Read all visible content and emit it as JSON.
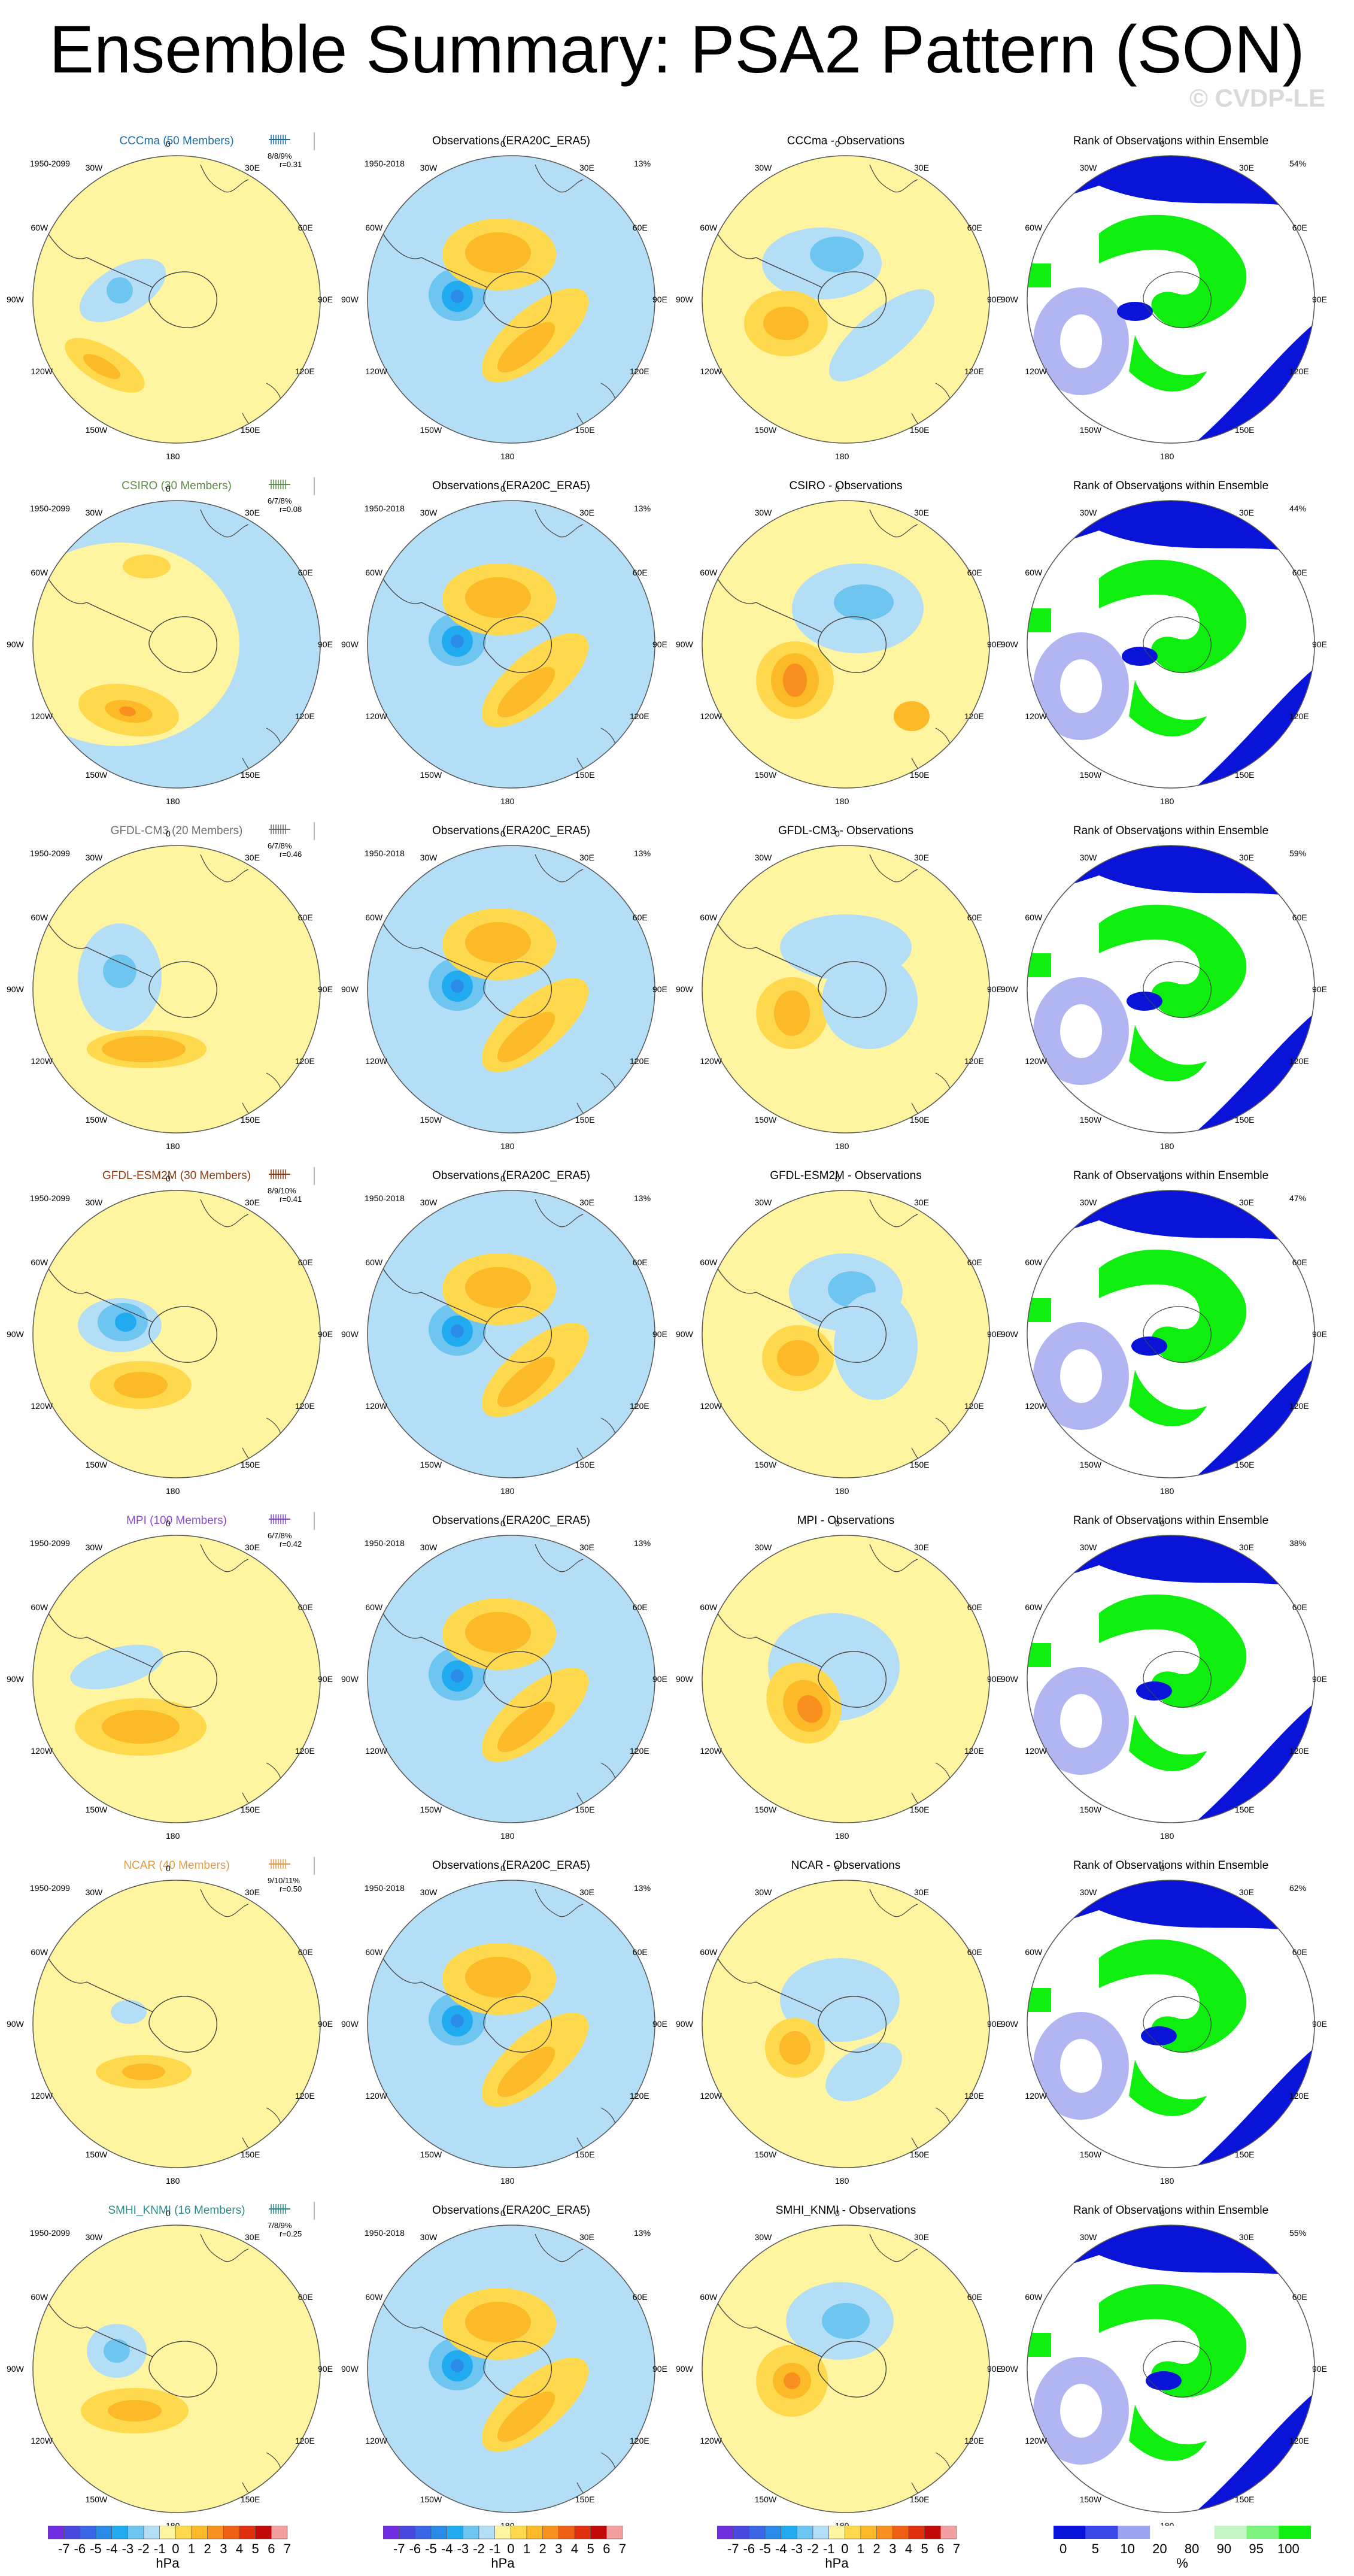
{
  "title": "Ensemble Summary: PSA2 Pattern (SON)",
  "watermark": "© CVDP-LE",
  "obs_title": "Observations (ERA20C_ERA5)",
  "obs_period": "1950-2018",
  "obs_pct": "13%",
  "rank_title": "Rank of Observations within Ensemble",
  "lon_labels": [
    "0",
    "30E",
    "60E",
    "90E",
    "120E",
    "150E",
    "180",
    "150W",
    "120W",
    "90W",
    "60W",
    "30W"
  ],
  "colors": {
    "pos": [
      "#fff4a0",
      "#ffd94d",
      "#fcb928",
      "#f88f1e",
      "#f06014",
      "#e0300e",
      "#c00a0a",
      "#f4a0a0"
    ],
    "neg": [
      "#b4def5",
      "#6ec5f0",
      "#22aaf0",
      "#2a8ae8",
      "#3a66e6",
      "#4a46e0",
      "#6e2ee0"
    ],
    "rank_low": "#0a14d8",
    "rank_mid": "#9ea4f0",
    "rank_high": "#10ee10",
    "rank_light": "#c6f6c6"
  },
  "models": [
    {
      "name": "CCCma (50 Members)",
      "color": "#1a6ea0",
      "period": "1950-2099",
      "stats": "8/8/9%",
      "r": "r=0.31",
      "diff_title": "CCCma - Observations",
      "rank_pct": "54%"
    },
    {
      "name": "CSIRO (30 Members)",
      "color": "#5e8a4a",
      "period": "1950-2099",
      "stats": "6/7/8%",
      "r": "r=0.08",
      "diff_title": "CSIRO - Observations",
      "rank_pct": "44%"
    },
    {
      "name": "GFDL-CM3 (20 Members)",
      "color": "#6e6e6e",
      "period": "1950-2099",
      "stats": "6/7/8%",
      "r": "r=0.46",
      "diff_title": "GFDL-CM3 - Observations",
      "rank_pct": "59%"
    },
    {
      "name": "GFDL-ESM2M (30 Members)",
      "color": "#8a3a10",
      "period": "1950-2099",
      "stats": "8/9/10%",
      "r": "r=0.41",
      "diff_title": "GFDL-ESM2M - Observations",
      "rank_pct": "47%"
    },
    {
      "name": "MPI (100 Members)",
      "color": "#8a4ac8",
      "period": "1950-2099",
      "stats": "6/7/8%",
      "r": "r=0.42",
      "diff_title": "MPI - Observations",
      "rank_pct": "38%"
    },
    {
      "name": "NCAR (40 Members)",
      "color": "#e09a4a",
      "period": "1950-2099",
      "stats": "9/10/11%",
      "r": "r=0.50",
      "diff_title": "NCAR - Observations",
      "rank_pct": "62%"
    },
    {
      "name": "SMHI_KNMI (16 Members)",
      "color": "#2a8a8a",
      "period": "1950-2099",
      "stats": "7/8/9%",
      "r": "r=0.25",
      "diff_title": "SMHI_KNMI - Observations",
      "rank_pct": "55%"
    }
  ],
  "colorbar_hpa": {
    "labels": [
      "-7",
      "-6",
      "-5",
      "-4",
      "-3",
      "-2",
      "-1",
      "0",
      "1",
      "2",
      "3",
      "4",
      "5",
      "6",
      "7"
    ],
    "units": "hPa"
  },
  "colorbar_pct": {
    "labels": [
      "0",
      "5",
      "10",
      "20",
      "80",
      "90",
      "95",
      "100"
    ],
    "units": "%"
  }
}
